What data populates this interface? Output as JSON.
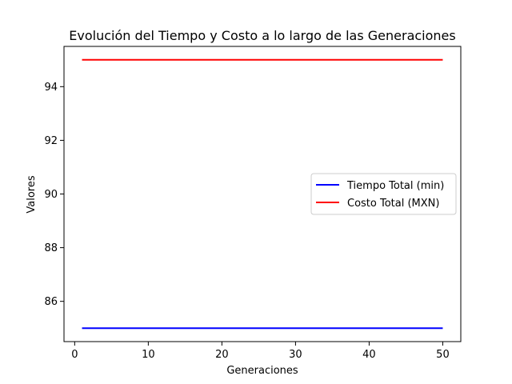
{
  "chart_data": {
    "type": "line",
    "title": "Evolución del Tiempo y Costo a lo largo de las Generaciones",
    "xlabel": "Generaciones",
    "ylabel": "Valores",
    "xlim": [
      -1.45,
      52.45
    ],
    "ylim": [
      84.5,
      95.5
    ],
    "xticks": [
      0,
      10,
      20,
      30,
      40,
      50
    ],
    "yticks": [
      86,
      88,
      90,
      92,
      94
    ],
    "grid": false,
    "legend_position": "center-right",
    "series": [
      {
        "name": "Tiempo Total (min)",
        "color": "#0000ff",
        "x": [
          1,
          50
        ],
        "y": [
          85,
          85
        ]
      },
      {
        "name": "Costo Total (MXN)",
        "color": "#ff0000",
        "x": [
          1,
          50
        ],
        "y": [
          95,
          95
        ]
      }
    ]
  }
}
